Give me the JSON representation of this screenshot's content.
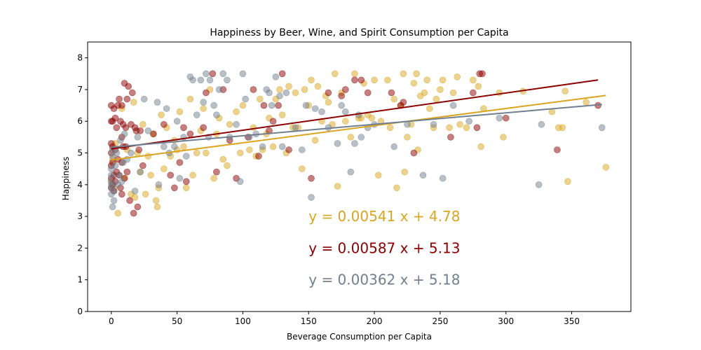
{
  "chart_data": {
    "type": "scatter",
    "title": "Happiness by Beer, Wine, and Spirit Consumption per Capita",
    "xlabel": "Beverage Consumption per Capita",
    "ylabel": "Happiness",
    "xlim": [
      -18,
      395
    ],
    "ylim": [
      0,
      8.5
    ],
    "xticks": [
      0,
      50,
      100,
      150,
      200,
      250,
      300,
      350
    ],
    "yticks": [
      0,
      1,
      2,
      3,
      4,
      5,
      6,
      7,
      8
    ],
    "grid": false,
    "series": [
      {
        "color": "#DAA520",
        "fit": {
          "slope": 0.00541,
          "intercept": 4.78,
          "x": [
            0,
            376
          ]
        },
        "equation": "y = 0.00541 x + 4.78",
        "points": [
          [
            0,
            4.1
          ],
          [
            1,
            4.8
          ],
          [
            2,
            3.9
          ],
          [
            3,
            5.3
          ],
          [
            5,
            3.1
          ],
          [
            8,
            6.4
          ],
          [
            10,
            4.2
          ],
          [
            12,
            5.1
          ],
          [
            15,
            3.7
          ],
          [
            17,
            6.6
          ],
          [
            18,
            3.6
          ],
          [
            20,
            5.0
          ],
          [
            22,
            4.4
          ],
          [
            24,
            5.9
          ],
          [
            26,
            3.7
          ],
          [
            28,
            4.9
          ],
          [
            30,
            4.3
          ],
          [
            32,
            5.6
          ],
          [
            34,
            3.5
          ],
          [
            35,
            3.3
          ],
          [
            36,
            3.9
          ],
          [
            38,
            6.2
          ],
          [
            40,
            4.5
          ],
          [
            42,
            5.8
          ],
          [
            45,
            4.9
          ],
          [
            48,
            5.4
          ],
          [
            50,
            5.1
          ],
          [
            52,
            6.3
          ],
          [
            55,
            5.2
          ],
          [
            57,
            3.9
          ],
          [
            60,
            6.7
          ],
          [
            62,
            4.3
          ],
          [
            65,
            5.0
          ],
          [
            68,
            5.7
          ],
          [
            70,
            6.4
          ],
          [
            72,
            5.0
          ],
          [
            75,
            7.0
          ],
          [
            78,
            4.2
          ],
          [
            80,
            5.6
          ],
          [
            82,
            6.1
          ],
          [
            85,
            4.8
          ],
          [
            88,
            4.6
          ],
          [
            90,
            5.9
          ],
          [
            95,
            6.3
          ],
          [
            98,
            5.0
          ],
          [
            100,
            6.5
          ],
          [
            105,
            5.1
          ],
          [
            108,
            5.8
          ],
          [
            110,
            4.9
          ],
          [
            113,
            6.7
          ],
          [
            115,
            5.1
          ],
          [
            118,
            5.6
          ],
          [
            120,
            6.1
          ],
          [
            123,
            5.2
          ],
          [
            125,
            6.7
          ],
          [
            128,
            7.0
          ],
          [
            130,
            6.2
          ],
          [
            133,
            5.0
          ],
          [
            135,
            7.1
          ],
          [
            138,
            5.8
          ],
          [
            140,
            6.9
          ],
          [
            142,
            5.8
          ],
          [
            145,
            4.5
          ],
          [
            147,
            7.0
          ],
          [
            150,
            6.5
          ],
          [
            152,
            7.3
          ],
          [
            155,
            5.4
          ],
          [
            157,
            7.1
          ],
          [
            160,
            6.0
          ],
          [
            163,
            6.8
          ],
          [
            165,
            6.6
          ],
          [
            168,
            5.9
          ],
          [
            170,
            7.5
          ],
          [
            172,
            3.95
          ],
          [
            175,
            6.9
          ],
          [
            178,
            6.0
          ],
          [
            182,
            5.5
          ],
          [
            185,
            7.5
          ],
          [
            188,
            6.1
          ],
          [
            190,
            6.1
          ],
          [
            192,
            7.2
          ],
          [
            195,
            6.2
          ],
          [
            198,
            6.1
          ],
          [
            200,
            7.3
          ],
          [
            203,
            4.3
          ],
          [
            205,
            6.0
          ],
          [
            210,
            7.3
          ],
          [
            212,
            5.8
          ],
          [
            215,
            6.7
          ],
          [
            217,
            3.9
          ],
          [
            220,
            6.5
          ],
          [
            222,
            7.5
          ],
          [
            223,
            4.4
          ],
          [
            225,
            5.5
          ],
          [
            228,
            5.9
          ],
          [
            230,
            7.2
          ],
          [
            232,
            7.5
          ],
          [
            233,
            5.1
          ],
          [
            235,
            6.8
          ],
          [
            238,
            6.9
          ],
          [
            240,
            7.3
          ],
          [
            242,
            6.4
          ],
          [
            245,
            5.8
          ],
          [
            247,
            6.7
          ],
          [
            250,
            7.0
          ],
          [
            252,
            7.3
          ],
          [
            257,
            5.8
          ],
          [
            260,
            6.9
          ],
          [
            263,
            7.4
          ],
          [
            265,
            5.9
          ],
          [
            270,
            5.8
          ],
          [
            275,
            7.3
          ],
          [
            279,
            7.1
          ],
          [
            281,
            5.2
          ],
          [
            283,
            6.4
          ],
          [
            295,
            6.9
          ],
          [
            298,
            5.5
          ],
          [
            313,
            6.95
          ],
          [
            335,
            6.3
          ],
          [
            340,
            5.8
          ],
          [
            343,
            5.8
          ],
          [
            345,
            6.95
          ],
          [
            347,
            4.1
          ],
          [
            361,
            6.6
          ],
          [
            376,
            4.55
          ]
        ]
      },
      {
        "color": "#8B0000",
        "fit": {
          "slope": 0.00587,
          "intercept": 5.13,
          "x": [
            0,
            370
          ]
        },
        "equation": "y = 0.00587 x + 5.13",
        "points": [
          [
            0,
            3.9
          ],
          [
            0,
            4.2
          ],
          [
            0,
            4.6
          ],
          [
            0,
            5.0
          ],
          [
            0,
            5.3
          ],
          [
            0,
            6.0
          ],
          [
            0,
            6.5
          ],
          [
            1,
            4.0
          ],
          [
            1,
            4.7
          ],
          [
            1,
            5.2
          ],
          [
            1,
            6.0
          ],
          [
            2,
            3.8
          ],
          [
            2,
            4.3
          ],
          [
            2,
            6.4
          ],
          [
            3,
            4.1
          ],
          [
            3,
            5.1
          ],
          [
            3,
            6.1
          ],
          [
            4,
            4.4
          ],
          [
            4,
            5.8
          ],
          [
            5,
            4.8
          ],
          [
            5,
            6.5
          ],
          [
            6,
            4.3
          ],
          [
            6,
            6.7
          ],
          [
            7,
            3.9
          ],
          [
            7,
            6.0
          ],
          [
            8,
            3.7
          ],
          [
            8,
            4.7
          ],
          [
            8,
            5.5
          ],
          [
            8,
            6.5
          ],
          [
            9,
            5.2
          ],
          [
            9,
            5.9
          ],
          [
            10,
            4.2
          ],
          [
            10,
            7.2
          ],
          [
            11,
            5.2
          ],
          [
            11,
            5.8
          ],
          [
            12,
            4.4
          ],
          [
            12,
            6.7
          ],
          [
            13,
            7.1
          ],
          [
            14,
            3.5
          ],
          [
            15,
            5.9
          ],
          [
            16,
            6.9
          ],
          [
            17,
            3.1
          ],
          [
            18,
            5.8
          ],
          [
            19,
            5.7
          ],
          [
            20,
            3.3
          ],
          [
            21,
            5.1
          ],
          [
            22,
            5.7
          ],
          [
            24,
            4.6
          ],
          [
            32,
            5.6
          ],
          [
            40,
            5.9
          ],
          [
            45,
            4.3
          ],
          [
            48,
            3.9
          ],
          [
            52,
            4.7
          ],
          [
            55,
            5.8
          ],
          [
            57,
            4.1
          ],
          [
            60,
            5.6
          ],
          [
            70,
            5.8
          ],
          [
            72,
            6.9
          ],
          [
            77,
            7.5
          ],
          [
            80,
            4.4
          ],
          [
            85,
            7.0
          ],
          [
            90,
            5.4
          ],
          [
            95,
            4.2
          ],
          [
            104,
            5.5
          ],
          [
            108,
            7.0
          ],
          [
            112,
            4.9
          ],
          [
            116,
            6.5
          ],
          [
            120,
            5.7
          ],
          [
            123,
            6.0
          ],
          [
            127,
            6.5
          ],
          [
            130,
            7.5
          ],
          [
            135,
            5.1
          ],
          [
            152,
            4.2
          ],
          [
            165,
            6.9
          ],
          [
            175,
            6.8
          ],
          [
            178,
            7.0
          ],
          [
            185,
            7.3
          ],
          [
            190,
            7.3
          ],
          [
            195,
            6.9
          ],
          [
            213,
            6.9
          ],
          [
            220,
            6.5
          ],
          [
            222,
            6.6
          ],
          [
            230,
            5.0
          ],
          [
            258,
            5.5
          ],
          [
            275,
            6.9
          ],
          [
            278,
            5.8
          ],
          [
            280,
            7.5
          ],
          [
            282,
            7.5
          ],
          [
            300,
            6.1
          ],
          [
            339,
            5.1
          ],
          [
            370,
            6.5
          ]
        ]
      },
      {
        "color": "#708090",
        "fit": {
          "slope": 0.00362,
          "intercept": 5.18,
          "x": [
            0,
            373
          ]
        },
        "equation": "y = 0.00362 x + 5.18",
        "points": [
          [
            0,
            3.7
          ],
          [
            0,
            3.9
          ],
          [
            0,
            4.0
          ],
          [
            0,
            4.1
          ],
          [
            0,
            4.3
          ],
          [
            0,
            4.5
          ],
          [
            1,
            4.9
          ],
          [
            1,
            5.1
          ],
          [
            1,
            3.3
          ],
          [
            2,
            3.5
          ],
          [
            2,
            3.8
          ],
          [
            3,
            4.6
          ],
          [
            4,
            5.0
          ],
          [
            5,
            4.0
          ],
          [
            6,
            4.3
          ],
          [
            7,
            5.4
          ],
          [
            8,
            4.1
          ],
          [
            9,
            4.7
          ],
          [
            10,
            5.6
          ],
          [
            12,
            4.8
          ],
          [
            15,
            5.0
          ],
          [
            18,
            3.8
          ],
          [
            20,
            5.5
          ],
          [
            22,
            4.4
          ],
          [
            25,
            6.7
          ],
          [
            28,
            5.7
          ],
          [
            35,
            6.6
          ],
          [
            36,
            4.0
          ],
          [
            40,
            5.2
          ],
          [
            42,
            6.4
          ],
          [
            44,
            5.0
          ],
          [
            48,
            5.2
          ],
          [
            50,
            6.0
          ],
          [
            52,
            4.2
          ],
          [
            55,
            5.5
          ],
          [
            57,
            4.9
          ],
          [
            60,
            7.4
          ],
          [
            62,
            7.3
          ],
          [
            65,
            6.2
          ],
          [
            68,
            7.3
          ],
          [
            70,
            6.6
          ],
          [
            72,
            7.5
          ],
          [
            74,
            5.5
          ],
          [
            75,
            7.3
          ],
          [
            78,
            6.5
          ],
          [
            80,
            6.2
          ],
          [
            82,
            7.0
          ],
          [
            85,
            7.5
          ],
          [
            88,
            7.3
          ],
          [
            90,
            5.5
          ],
          [
            95,
            5.9
          ],
          [
            98,
            4.1
          ],
          [
            100,
            7.5
          ],
          [
            102,
            6.7
          ],
          [
            105,
            5.5
          ],
          [
            110,
            5.6
          ],
          [
            115,
            5.2
          ],
          [
            118,
            7.0
          ],
          [
            120,
            6.9
          ],
          [
            122,
            6.5
          ],
          [
            125,
            7.4
          ],
          [
            128,
            6.8
          ],
          [
            130,
            5.2
          ],
          [
            133,
            6.9
          ],
          [
            140,
            5.8
          ],
          [
            145,
            5.1
          ],
          [
            148,
            6.5
          ],
          [
            152,
            3.6
          ],
          [
            155,
            6.4
          ],
          [
            160,
            6.3
          ],
          [
            165,
            5.8
          ],
          [
            172,
            5.3
          ],
          [
            175,
            6.5
          ],
          [
            178,
            6.3
          ],
          [
            182,
            4.4
          ],
          [
            185,
            5.3
          ],
          [
            188,
            6.2
          ],
          [
            190,
            5.5
          ],
          [
            195,
            5.8
          ],
          [
            200,
            5.9
          ],
          [
            215,
            5.2
          ],
          [
            225,
            5.9
          ],
          [
            237,
            4.3
          ],
          [
            245,
            5.9
          ],
          [
            252,
            4.2
          ],
          [
            260,
            6.5
          ],
          [
            272,
            6.0
          ],
          [
            295,
            6.1
          ],
          [
            325,
            4.0
          ],
          [
            327,
            5.9
          ],
          [
            373,
            5.8
          ]
        ]
      }
    ]
  }
}
